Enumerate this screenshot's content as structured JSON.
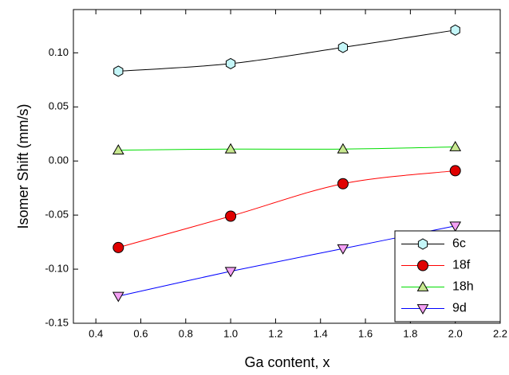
{
  "chart_data": {
    "type": "line",
    "x_label": "Ga content, x",
    "y_label": "Isomer Shift (mm/s)",
    "x": [
      0.5,
      1.0,
      1.5,
      2.0
    ],
    "series": [
      {
        "name": "6c",
        "color": "#000000",
        "marker_color": "#c4f6f8",
        "marker": "hexagon",
        "values": [
          0.083,
          0.09,
          0.105,
          0.121
        ]
      },
      {
        "name": "18f",
        "color": "#ff0000",
        "marker_color": "#e00000",
        "marker": "circle",
        "values": [
          -0.08,
          -0.051,
          -0.021,
          -0.009
        ]
      },
      {
        "name": "18h",
        "color": "#00dd00",
        "marker_color": "#c8e890",
        "marker": "triangle-up",
        "values": [
          0.01,
          0.011,
          0.011,
          0.013
        ]
      },
      {
        "name": "9d",
        "color": "#0000ff",
        "marker_color": "#f4a0f4",
        "marker": "triangle-down",
        "values": [
          -0.125,
          -0.102,
          -0.081,
          -0.06
        ]
      }
    ],
    "xlim": [
      0.3,
      2.2
    ],
    "xticks": [
      0.4,
      0.6,
      0.8,
      {
        "value": 1,
        "label": "1.0"
      },
      1.2,
      1.4,
      1.6,
      1.8,
      {
        "value": 2,
        "label": "2.0"
      },
      2.2
    ],
    "ylim": [
      -0.15,
      0.14
    ],
    "yticks": [
      {
        "value": -0.15,
        "label": "-0.15"
      },
      {
        "value": -0.1,
        "label": "-0.10"
      },
      {
        "value": -0.05,
        "label": "-0.05"
      },
      {
        "value": 0,
        "label": "0.00"
      },
      {
        "value": 0.05,
        "label": "0.05"
      },
      {
        "value": 0.1,
        "label": "0.10"
      }
    ],
    "legend": "lower right"
  }
}
